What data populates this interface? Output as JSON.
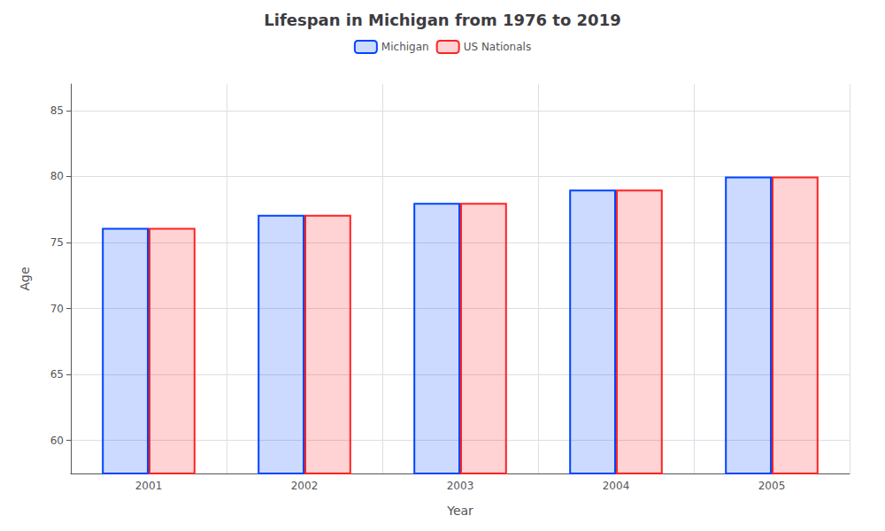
{
  "chart_data": {
    "type": "bar",
    "title": "Lifespan in Michigan from 1976 to 2019",
    "xlabel": "Year",
    "ylabel": "Age",
    "categories": [
      "2001",
      "2002",
      "2003",
      "2004",
      "2005"
    ],
    "series": [
      {
        "name": "Michigan",
        "color": "#0044ff",
        "values": [
          76.1,
          77.1,
          78.0,
          79.0,
          80.0
        ]
      },
      {
        "name": "US Nationals",
        "color": "#ff2222",
        "values": [
          76.1,
          77.1,
          78.0,
          79.0,
          80.0
        ]
      }
    ],
    "ylim": [
      57.5,
      87
    ],
    "yticks": [
      60,
      65,
      70,
      75,
      80,
      85
    ],
    "grid": true,
    "legend": "top"
  }
}
